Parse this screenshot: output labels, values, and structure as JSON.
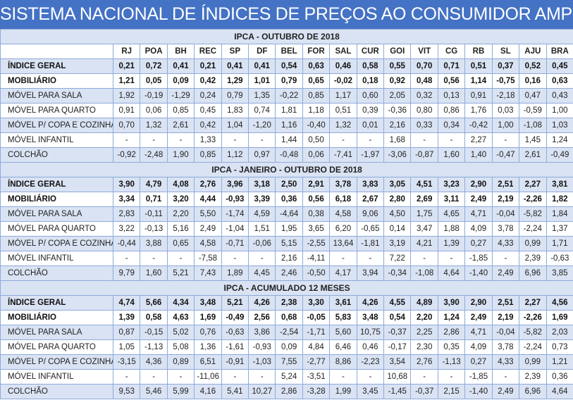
{
  "title": "SISTEMA NACIONAL DE ÍNDICES DE PREÇOS AO CONSUMIDOR AMPLO - IPCA",
  "columns": [
    "RJ",
    "POA",
    "BH",
    "REC",
    "SP",
    "DF",
    "BEL",
    "FOR",
    "SAL",
    "CUR",
    "GOI",
    "VIT",
    "CG",
    "RB",
    "SL",
    "AJU",
    "BRA"
  ],
  "colors": {
    "title_bg": "#4472c4",
    "band": "#dae3f3",
    "border": "#8eaadb"
  },
  "sections": [
    {
      "title": "IPCA - OUTUBRO DE 2018",
      "rows": [
        {
          "label": "ÍNDICE GERAL",
          "bold": true,
          "values": [
            "0,21",
            "0,72",
            "0,41",
            "0,21",
            "0,41",
            "0,41",
            "0,54",
            "0,63",
            "0,46",
            "0,58",
            "0,55",
            "0,70",
            "0,71",
            "0,51",
            "0,37",
            "0,52",
            "0,45"
          ]
        },
        {
          "label": "MOBILIÁRIO",
          "bold": true,
          "values": [
            "1,21",
            "0,05",
            "0,09",
            "0,42",
            "1,29",
            "1,01",
            "0,79",
            "0,65",
            "-0,02",
            "0,18",
            "0,92",
            "0,48",
            "0,56",
            "1,14",
            "-0,75",
            "0,16",
            "0,63"
          ]
        },
        {
          "label": "MÓVEL PARA SALA",
          "values": [
            "1,92",
            "-0,19",
            "-1,29",
            "0,24",
            "0,79",
            "1,35",
            "-0,22",
            "0,85",
            "1,17",
            "0,60",
            "2,05",
            "0,32",
            "0,13",
            "0,91",
            "-2,18",
            "0,47",
            "0,43"
          ]
        },
        {
          "label": "MÓVEL PARA QUARTO",
          "values": [
            "0,91",
            "0,06",
            "0,85",
            "0,45",
            "1,83",
            "0,74",
            "1,81",
            "1,18",
            "0,51",
            "0,39",
            "-0,36",
            "0,80",
            "0,86",
            "1,76",
            "0,03",
            "-0,59",
            "1,00"
          ]
        },
        {
          "label": "MÓVEL P/ COPA E COZINHA",
          "values": [
            "0,70",
            "1,32",
            "2,61",
            "0,42",
            "1,04",
            "-1,20",
            "1,16",
            "-0,40",
            "1,32",
            "0,01",
            "2,16",
            "0,33",
            "0,34",
            "-0,42",
            "1,00",
            "-1,08",
            "1,03"
          ]
        },
        {
          "label": "MÓVEL INFANTIL",
          "values": [
            "-",
            "-",
            "-",
            "1,33",
            "-",
            "-",
            "1,44",
            "0,50",
            "-",
            "-",
            "1,68",
            "-",
            "-",
            "2,27",
            "-",
            "1,45",
            "1,24"
          ]
        },
        {
          "label": "COLCHÃO",
          "values": [
            "-0,92",
            "-2,48",
            "1,90",
            "0,85",
            "1,12",
            "0,97",
            "-0,48",
            "0,06",
            "-7,41",
            "-1,97",
            "-3,06",
            "-0,87",
            "1,60",
            "1,40",
            "-0,47",
            "2,61",
            "-0,49"
          ]
        }
      ]
    },
    {
      "title": "IPCA - JANEIRO - OUTUBRO DE 2018",
      "rows": [
        {
          "label": "ÍNDICE GERAL",
          "bold": true,
          "values": [
            "3,90",
            "4,79",
            "4,08",
            "2,76",
            "3,96",
            "3,18",
            "2,50",
            "2,91",
            "3,78",
            "3,83",
            "3,05",
            "4,51",
            "3,23",
            "2,90",
            "2,51",
            "2,27",
            "3,81"
          ]
        },
        {
          "label": "MOBILIÁRIO",
          "bold": true,
          "values": [
            "3,34",
            "0,71",
            "3,20",
            "4,44",
            "-0,93",
            "3,39",
            "0,36",
            "0,56",
            "6,18",
            "2,67",
            "2,80",
            "2,69",
            "3,11",
            "2,49",
            "2,19",
            "-2,26",
            "1,82"
          ]
        },
        {
          "label": "MÓVEL PARA SALA",
          "values": [
            "2,83",
            "-0,11",
            "2,20",
            "5,50",
            "-1,74",
            "4,59",
            "-4,64",
            "0,38",
            "4,58",
            "9,06",
            "4,50",
            "1,75",
            "4,65",
            "4,71",
            "-0,04",
            "-5,82",
            "1,84"
          ]
        },
        {
          "label": "MÓVEL PARA QUARTO",
          "values": [
            "3,22",
            "-0,13",
            "5,16",
            "2,49",
            "-1,04",
            "1,51",
            "1,95",
            "3,65",
            "6,20",
            "-0,65",
            "0,14",
            "3,47",
            "1,88",
            "4,09",
            "3,78",
            "-2,24",
            "1,37"
          ]
        },
        {
          "label": "MÓVEL P/ COPA E COZINHA",
          "values": [
            "-0,44",
            "3,88",
            "0,65",
            "4,58",
            "-0,71",
            "-0,06",
            "5,15",
            "-2,55",
            "13,64",
            "-1,81",
            "3,19",
            "4,21",
            "1,39",
            "0,27",
            "4,33",
            "0,99",
            "1,71"
          ]
        },
        {
          "label": "MÓVEL INFANTIL",
          "values": [
            "-",
            "-",
            "-",
            "-7,58",
            "-",
            "-",
            "2,16",
            "-4,11",
            "-",
            "-",
            "7,22",
            "-",
            "-",
            "-1,85",
            "-",
            "2,39",
            "-0,63"
          ]
        },
        {
          "label": "COLCHÃO",
          "values": [
            "9,79",
            "1,60",
            "5,21",
            "7,43",
            "1,89",
            "4,45",
            "2,46",
            "-0,50",
            "4,17",
            "3,94",
            "-0,34",
            "-1,08",
            "4,64",
            "-1,40",
            "2,49",
            "6,96",
            "3,85"
          ]
        }
      ]
    },
    {
      "title": "IPCA - ACUMULADO 12 MESES",
      "rows": [
        {
          "label": "ÍNDICE GERAL",
          "bold": true,
          "values": [
            "4,74",
            "5,66",
            "4,34",
            "3,48",
            "5,21",
            "4,26",
            "2,38",
            "3,30",
            "3,61",
            "4,26",
            "4,55",
            "4,89",
            "3,90",
            "2,90",
            "2,51",
            "2,27",
            "4,56"
          ]
        },
        {
          "label": "MOBILIÁRIO",
          "bold": true,
          "values": [
            "1,39",
            "0,58",
            "4,63",
            "1,69",
            "-0,49",
            "2,56",
            "0,68",
            "-0,05",
            "5,83",
            "3,48",
            "0,54",
            "2,20",
            "1,24",
            "2,49",
            "2,19",
            "-2,26",
            "1,69"
          ]
        },
        {
          "label": "MÓVEL PARA SALA",
          "values": [
            "0,87",
            "-0,15",
            "5,02",
            "0,76",
            "-0,63",
            "3,86",
            "-2,54",
            "-1,71",
            "5,60",
            "10,75",
            "-0,37",
            "2,25",
            "2,86",
            "4,71",
            "-0,04",
            "-5,82",
            "2,03"
          ]
        },
        {
          "label": "MÓVEL PARA QUARTO",
          "values": [
            "1,05",
            "-1,13",
            "5,08",
            "1,36",
            "-1,61",
            "-0,93",
            "0,09",
            "4,84",
            "6,46",
            "0,46",
            "-0,17",
            "2,30",
            "0,35",
            "4,09",
            "3,78",
            "-2,24",
            "0,73"
          ]
        },
        {
          "label": "MÓVEL P/ COPA E COZINHA",
          "values": [
            "-3,15",
            "4,36",
            "0,89",
            "6,51",
            "-0,91",
            "-1,03",
            "7,55",
            "-2,77",
            "8,86",
            "-2,23",
            "3,54",
            "2,76",
            "-1,13",
            "0,27",
            "4,33",
            "0,99",
            "1,21"
          ]
        },
        {
          "label": "MÓVEL INFANTIL",
          "values": [
            "-",
            "-",
            "-",
            "-11,06",
            "-",
            "-",
            "5,24",
            "-3,51",
            "-",
            "-",
            "10,68",
            "-",
            "-",
            "-1,85",
            "-",
            "2,39",
            "0,36"
          ]
        },
        {
          "label": "COLCHÃO",
          "values": [
            "9,53",
            "5,46",
            "5,99",
            "4,16",
            "5,41",
            "10,27",
            "2,86",
            "-3,28",
            "1,99",
            "3,45",
            "-1,45",
            "-0,37",
            "2,15",
            "-1,40",
            "2,49",
            "6,96",
            "4,64"
          ]
        }
      ]
    }
  ]
}
